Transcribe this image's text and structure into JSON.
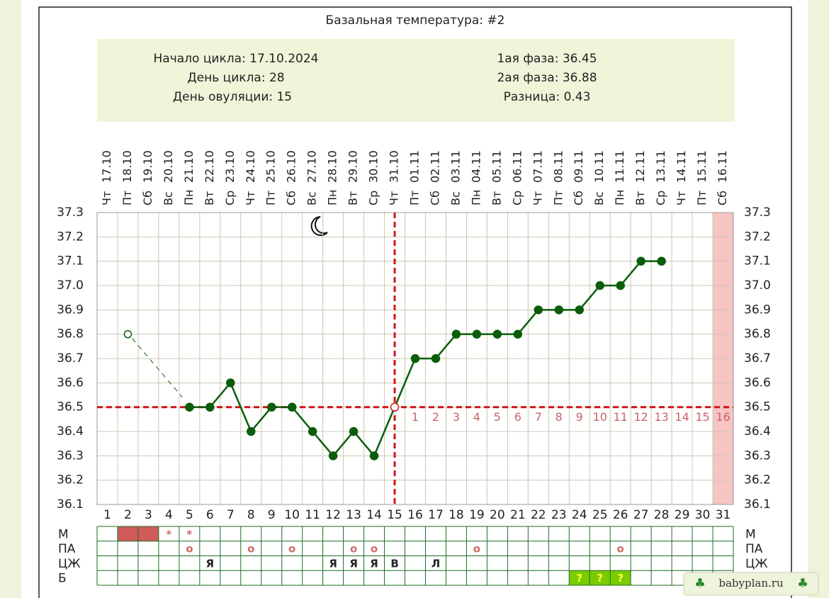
{
  "chart_data": {
    "type": "line",
    "title": "Базальная температура: #2",
    "info_left": [
      "Начало цикла: 17.10.2024",
      "День цикла: 28",
      "День овуляции: 15"
    ],
    "info_right": [
      "1ая фаза: 36.45",
      "2ая фаза: 36.88",
      "Разница: 0.43"
    ],
    "days": [
      1,
      2,
      3,
      4,
      5,
      6,
      7,
      8,
      9,
      10,
      11,
      12,
      13,
      14,
      15,
      16,
      17,
      18,
      19,
      20,
      21,
      22,
      23,
      24,
      25,
      26,
      27,
      28,
      29,
      30,
      31
    ],
    "dates": [
      "17.10",
      "18.10",
      "19.10",
      "20.10",
      "21.10",
      "22.10",
      "23.10",
      "24.10",
      "25.10",
      "26.10",
      "27.10",
      "28.10",
      "29.10",
      "30.10",
      "31.10",
      "01.11",
      "02.11",
      "03.11",
      "04.11",
      "05.11",
      "06.11",
      "07.11",
      "08.11",
      "09.11",
      "10.11",
      "11.11",
      "12.11",
      "13.11",
      "14.11",
      "15.11",
      "16.11"
    ],
    "weekdays": [
      "Чт",
      "Пт",
      "Сб",
      "Вс",
      "Пн",
      "Вт",
      "Ср",
      "Чт",
      "Пт",
      "Сб",
      "Вс",
      "Пн",
      "Вт",
      "Ср",
      "Чт",
      "Пт",
      "Сб",
      "Вс",
      "Пн",
      "Вт",
      "Ср",
      "Чт",
      "Пт",
      "Сб",
      "Вс",
      "Пн",
      "Вт",
      "Ср",
      "Чт",
      "Пт",
      "Сб"
    ],
    "series": [
      {
        "name": "temperature",
        "color": "#0b5d0b",
        "values": [
          null,
          null,
          null,
          null,
          36.5,
          36.5,
          36.6,
          36.4,
          36.5,
          36.5,
          36.4,
          36.3,
          36.4,
          36.3,
          36.5,
          36.7,
          36.7,
          36.8,
          36.8,
          36.8,
          36.8,
          36.9,
          36.9,
          36.9,
          37.0,
          37.0,
          37.1,
          37.1,
          null,
          null,
          null
        ]
      },
      {
        "name": "excluded",
        "color": "#0b5d0b",
        "values": [
          null,
          36.8,
          null,
          null,
          null,
          null,
          null,
          null,
          null,
          null,
          null,
          null,
          null,
          null,
          null,
          null,
          null,
          null,
          null,
          null,
          null,
          null,
          null,
          null,
          null,
          null,
          null,
          null,
          null,
          null,
          null
        ]
      }
    ],
    "ylim": [
      36.1,
      37.3
    ],
    "yticks": [
      36.1,
      36.2,
      36.3,
      36.4,
      36.5,
      36.6,
      36.7,
      36.8,
      36.9,
      {
        "value": 37,
        "label": "37.0"
      },
      37.1,
      37.2,
      37.3
    ],
    "grid": true,
    "coverline": 36.5,
    "ovulation_day": 15,
    "coverline_color": "#d01818",
    "luteal_labels": [
      1,
      2,
      3,
      4,
      5,
      6,
      7,
      8,
      9,
      10,
      11,
      12,
      13,
      14,
      15,
      16
    ],
    "highlight_day": 31,
    "table": [
      {
        "label": "М",
        "fill": "#cf5b5b",
        "filled_days": [
          2,
          3
        ],
        "text_color": "#d06a6a",
        "marks": [
          {
            "day": 4,
            "text": "*"
          },
          {
            "day": 5,
            "text": "*"
          }
        ]
      },
      {
        "label": "ПА",
        "fill": "#cf5b5b",
        "filled_days": [],
        "text_color": "#d06a6a",
        "marks": [
          {
            "day": 5,
            "text": "o"
          },
          {
            "day": 8,
            "text": "o"
          },
          {
            "day": 10,
            "text": "o"
          },
          {
            "day": 13,
            "text": "o"
          },
          {
            "day": 14,
            "text": "o"
          },
          {
            "day": 19,
            "text": "o"
          },
          {
            "day": 26,
            "text": "o"
          }
        ]
      },
      {
        "label": "ЦЖ",
        "fill": "#cf5b5b",
        "filled_days": [],
        "text_color": "#222222",
        "marks": [
          {
            "day": 6,
            "text": "Я"
          },
          {
            "day": 12,
            "text": "Я"
          },
          {
            "day": 13,
            "text": "Я"
          },
          {
            "day": 14,
            "text": "Я"
          },
          {
            "day": 15,
            "text": "В"
          },
          {
            "day": 17,
            "text": "Л"
          }
        ]
      },
      {
        "label": "Б",
        "fill": "#7acc00",
        "filled_days": [
          24,
          25,
          26
        ],
        "text_color": "#ffff40",
        "marks": [
          {
            "day": 24,
            "text": "?"
          },
          {
            "day": 25,
            "text": "?"
          },
          {
            "day": 26,
            "text": "?"
          }
        ]
      }
    ],
    "watermark": "babyplan.ru"
  }
}
